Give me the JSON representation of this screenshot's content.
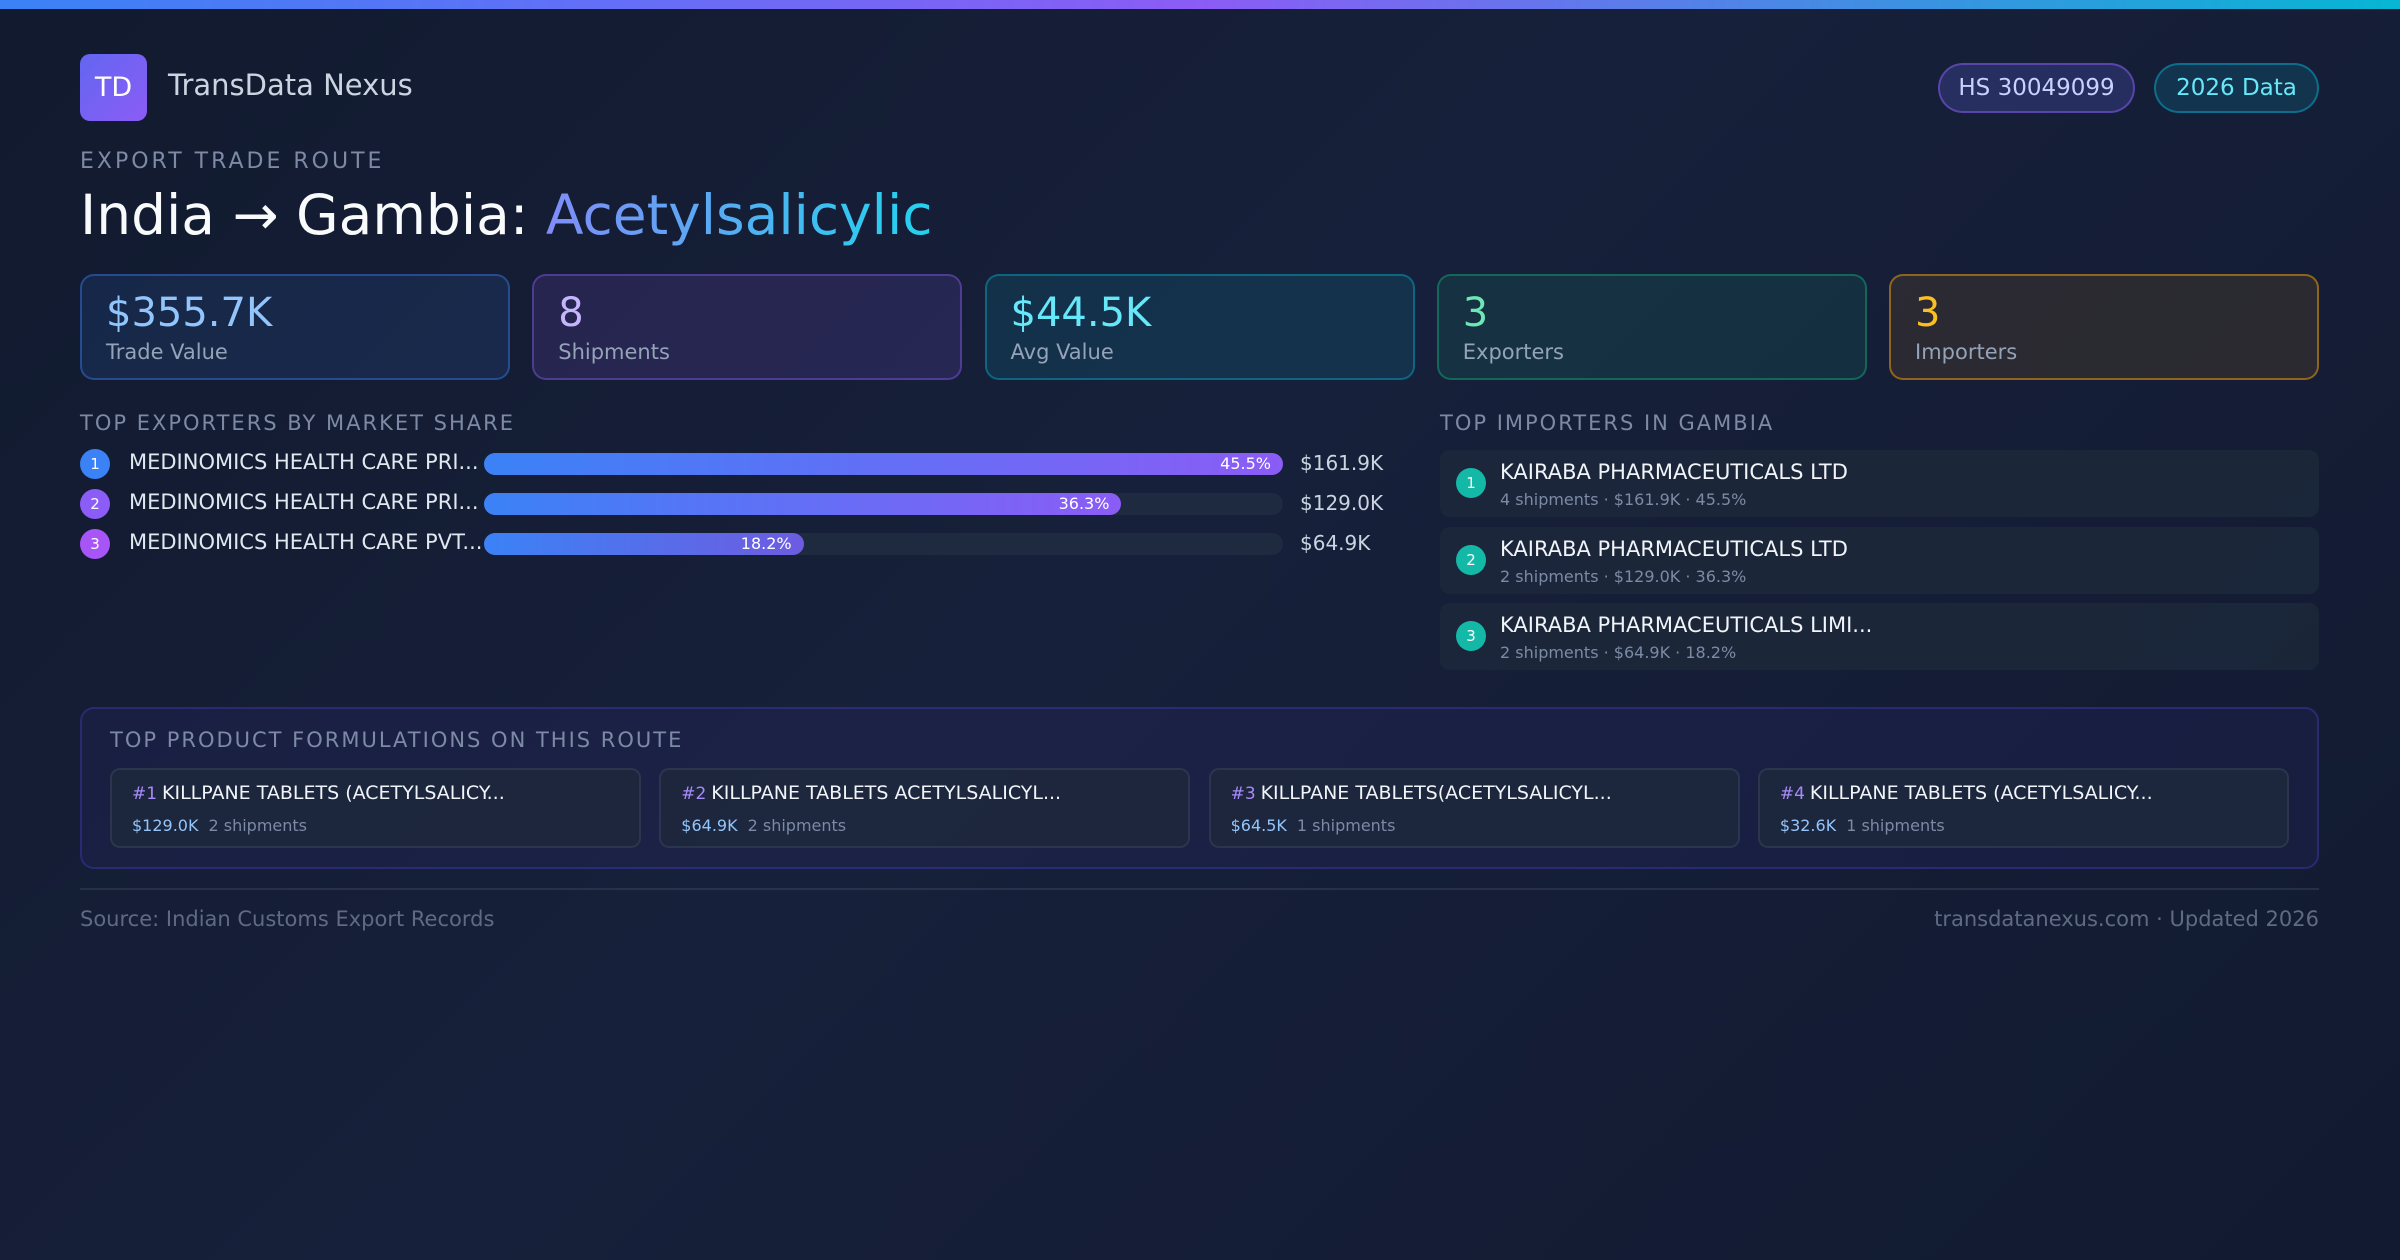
{
  "header": {
    "logo": "TD",
    "brand": "TransData Nexus",
    "badges": [
      "HS 30049099",
      "2026 Data"
    ]
  },
  "route": {
    "eyebrow": "EXPORT TRADE ROUTE",
    "title": "India → Gambia: ",
    "product": "Acetylsalicylic"
  },
  "stats": [
    {
      "value": "$355.7K",
      "label": "Trade Value"
    },
    {
      "value": 8,
      "label": "Shipments"
    },
    {
      "value": "$44.5K",
      "label": "Avg Value"
    },
    {
      "value": 3,
      "label": "Exporters"
    },
    {
      "value": 3,
      "label": "Importers"
    }
  ],
  "exporters": {
    "heading": "TOP EXPORTERS BY MARKET SHARE",
    "rows": [
      {
        "rank": 1,
        "name": "MEDINOMICS HEALTH CARE PRI...",
        "share": 45.5,
        "share_label": "45.5%",
        "value": "$161.9K"
      },
      {
        "rank": 2,
        "name": "MEDINOMICS HEALTH CARE PRI...",
        "share": 36.3,
        "share_label": "36.3%",
        "value": "$129.0K"
      },
      {
        "rank": 3,
        "name": "MEDINOMICS HEALTH CARE PVT...",
        "share": 18.2,
        "share_label": "18.2%",
        "value": "$64.9K"
      }
    ]
  },
  "importers": {
    "heading": "TOP IMPORTERS IN GAMBIA",
    "rows": [
      {
        "rank": 1,
        "name": "KAIRABA PHARMACEUTICALS LTD",
        "meta": "4 shipments · $161.9K · 45.5%"
      },
      {
        "rank": 2,
        "name": "KAIRABA PHARMACEUTICALS LTD",
        "meta": "2 shipments · $129.0K · 36.3%"
      },
      {
        "rank": 3,
        "name": "KAIRABA PHARMACEUTICALS LIMI...",
        "meta": "2 shipments · $64.9K · 18.2%"
      }
    ]
  },
  "products": {
    "heading": "TOP PRODUCT FORMULATIONS ON THIS ROUTE",
    "items": [
      {
        "rank": "#1",
        "name": "KILLPANE TABLETS (ACETYLSALICY...",
        "value": "$129.0K",
        "shipments": "2 shipments"
      },
      {
        "rank": "#2",
        "name": "KILLPANE TABLETS ACETYLSALICYL...",
        "value": "$64.9K",
        "shipments": "2 shipments"
      },
      {
        "rank": "#3",
        "name": "KILLPANE TABLETS(ACETYLSALICYL...",
        "value": "$64.5K",
        "shipments": "1 shipments"
      },
      {
        "rank": "#4",
        "name": "KILLPANE TABLETS (ACETYLSALICY...",
        "value": "$32.6K",
        "shipments": "1 shipments"
      }
    ]
  },
  "footer": {
    "source": "Source: Indian Customs Export Records",
    "site": "transdatanexus.com · Updated 2026"
  }
}
